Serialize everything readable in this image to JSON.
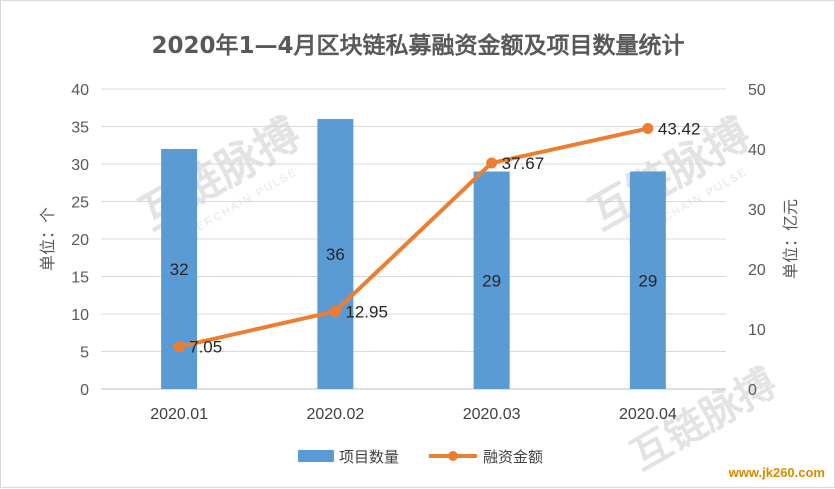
{
  "chart_data": {
    "type": "bar+line",
    "title": "2020年1—4月区块链私募融资金额及项目数量统计",
    "categories": [
      "2020.01",
      "2020.02",
      "2020.03",
      "2020.04"
    ],
    "series": [
      {
        "name": "项目数量",
        "type": "bar",
        "axis": "left",
        "values": [
          32,
          36,
          29,
          29
        ],
        "labels": [
          "32",
          "36",
          "29",
          "29"
        ],
        "color": "#5b9bd5"
      },
      {
        "name": "融资金额",
        "type": "line",
        "axis": "right",
        "values": [
          7.05,
          12.95,
          37.67,
          43.42
        ],
        "labels": [
          "7.05",
          "12.95",
          "37.67",
          "43.42"
        ],
        "color": "#ed7d31"
      }
    ],
    "ylabel_left": "单位：个",
    "ylabel_right": "单位：亿元",
    "ylim_left": [
      0,
      40
    ],
    "yticks_left": [
      "0",
      "5",
      "10",
      "15",
      "20",
      "25",
      "30",
      "35",
      "40"
    ],
    "ylim_right": [
      0,
      50
    ],
    "yticks_right": [
      "0",
      "10",
      "20",
      "30",
      "40",
      "50"
    ],
    "grid": true,
    "legend_position": "bottom"
  },
  "watermark": {
    "logo_text": "互链脉搏",
    "sub_text": "INTERCHAIN PULSE",
    "corner_text": "www.jk260.com"
  }
}
